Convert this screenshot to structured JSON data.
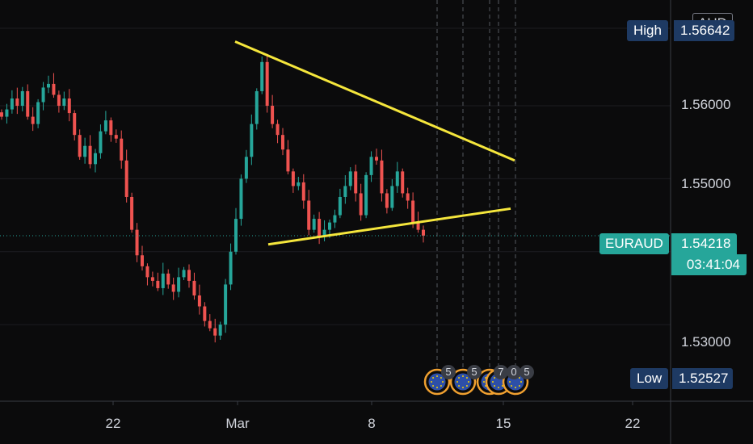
{
  "chart_data": {
    "type": "candlestick",
    "symbol": "EURAUD",
    "currency": "AUD",
    "last_price": "1.54218",
    "countdown": "03:41:04",
    "high_label": "High",
    "high_value": "1.56642",
    "low_label": "Low",
    "low_value": "1.52527",
    "y_ticks": [
      "1.56000",
      "1.55000",
      "1.53000"
    ],
    "x_ticks": [
      "22",
      "Mar",
      "8",
      "15",
      "22"
    ],
    "ylim": [
      1.5195,
      1.5745
    ],
    "event_counts": [
      "5",
      "5",
      "7",
      "0",
      "5"
    ],
    "trendlines": [
      {
        "from": {
          "date": "Feb 29",
          "price": 1.5688
        },
        "to": {
          "date": "Mar 16",
          "price": 1.5525
        }
      },
      {
        "from": {
          "date": "Mar 3",
          "price": 1.541
        },
        "to": {
          "date": "Mar 16",
          "price": 1.5459
        }
      }
    ],
    "candle_seed": [
      1.5585,
      1.5595,
      1.561,
      1.56,
      1.562,
      1.5585,
      1.5575,
      1.5605,
      1.5625,
      1.563,
      1.5615,
      1.56,
      1.561,
      1.559,
      1.556,
      1.553,
      1.5545,
      1.552,
      1.5535,
      1.5565,
      1.558,
      1.556,
      1.5555,
      1.5525,
      1.5475,
      1.543,
      1.5395,
      1.538,
      1.5365,
      1.536,
      1.535,
      1.537,
      1.5355,
      1.5345,
      1.5365,
      1.5375,
      1.536,
      1.534,
      1.5325,
      1.5305,
      1.5295,
      1.5285,
      1.53,
      1.5355,
      1.54,
      1.5445,
      1.55,
      1.553,
      1.5575,
      1.562,
      1.566,
      1.56,
      1.5575,
      1.556,
      1.554,
      1.551,
      1.549,
      1.5495,
      1.547,
      1.543,
      1.5445,
      1.542,
      1.543,
      1.544,
      1.545,
      1.5475,
      1.549,
      1.551,
      1.548,
      1.545,
      1.5505,
      1.553,
      1.5525,
      1.548,
      1.546,
      1.549,
      1.551,
      1.548,
      1.547,
      1.544,
      1.543,
      1.5422
    ]
  }
}
